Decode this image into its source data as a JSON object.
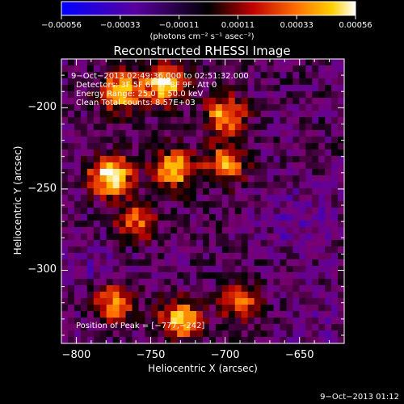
{
  "colorbar": {
    "ticks": [
      "−0.00056",
      "−0.00033",
      "−0.00011",
      "0.00011",
      "0.00033",
      "0.00056"
    ],
    "unit": "(photons cm⁻² s⁻¹ asec⁻²)"
  },
  "annotations": {
    "time_range": "9−Oct−2013 02:49:36.000 to 02:51:32.000",
    "detectors": "Detectors: 3F 5F 6F 7F 8F 9F, Att 0",
    "energy": "Energy Range: 25.0 − 50.0 keV",
    "clean": "Clean     Total counts: 8.57E+03",
    "peak": "Position of Peak = [−777,−242]"
  },
  "timestamp": "9−Oct−2013 01:12",
  "chart_data": {
    "type": "heatmap",
    "title": "Reconstructed RHESSI Image",
    "xlabel": "Heliocentric X (arcsec)",
    "ylabel": "Heliocentric Y (arcsec)",
    "xlim": [
      -810,
      -620
    ],
    "ylim": [
      -345,
      -170
    ],
    "xticks": [
      -800,
      -750,
      -700,
      -650
    ],
    "yticks": [
      -200,
      -250,
      -300
    ],
    "xtick_labels": [
      "−800",
      "−750",
      "−700",
      "−650"
    ],
    "ytick_labels": [
      "−200",
      "−250",
      "−300"
    ],
    "color_range": [
      -0.00056,
      0.00056
    ],
    "colormap": [
      "#0000ff",
      "#5a00a0",
      "#7a0070",
      "#000000",
      "#b00000",
      "#ff6000",
      "#ffd000",
      "#ffffff"
    ],
    "peak": [
      -777,
      -242
    ],
    "bright_regions": [
      {
        "x": -740,
        "y": -185,
        "value": 0.0005
      },
      {
        "x": -770,
        "y": -190,
        "value": 0.0004
      },
      {
        "x": -700,
        "y": -205,
        "value": 0.00035
      },
      {
        "x": -777,
        "y": -242,
        "value": 0.00056
      },
      {
        "x": -735,
        "y": -238,
        "value": 0.00042
      },
      {
        "x": -700,
        "y": -235,
        "value": 0.0003
      },
      {
        "x": -760,
        "y": -270,
        "value": 0.0002
      },
      {
        "x": -775,
        "y": -320,
        "value": 0.0003
      },
      {
        "x": -730,
        "y": -330,
        "value": 0.0004
      },
      {
        "x": -690,
        "y": -320,
        "value": 0.00022
      }
    ],
    "dim_regions": [
      {
        "x": -650,
        "y": -270,
        "value": -0.0003
      },
      {
        "x": -790,
        "y": -300,
        "value": -0.00025
      },
      {
        "x": -640,
        "y": -330,
        "value": -0.0002
      }
    ]
  }
}
